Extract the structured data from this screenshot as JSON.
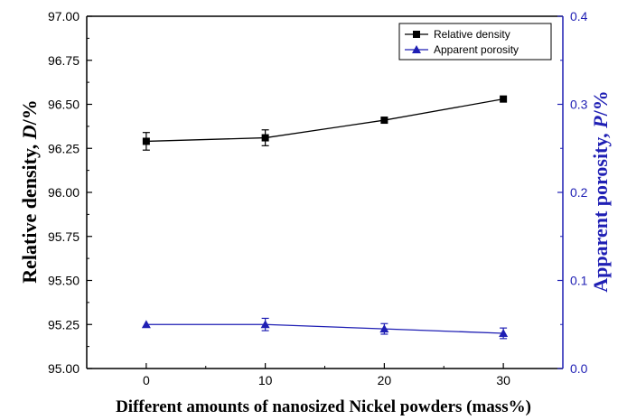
{
  "chart_data": {
    "type": "line",
    "x": [
      0,
      10,
      20,
      30
    ],
    "xlabel": "Different amounts of nanosized Nickel powders (mass%)",
    "xlim": [
      -5,
      35
    ],
    "xticks": [
      "0",
      "10",
      "20",
      "30"
    ],
    "ylabel_left_main": "Relative density, ",
    "ylabel_left_symbol": "D",
    "ylabel_left_unit": "/%",
    "ylabel_right_main": "Apparent porosity, ",
    "ylabel_right_symbol": "P",
    "ylabel_right_unit": "/%",
    "ylim_left": [
      95.0,
      97.0
    ],
    "yticks_left": [
      "95.00",
      "95.25",
      "95.50",
      "95.75",
      "96.00",
      "96.25",
      "96.50",
      "96.75",
      "97.00"
    ],
    "ylim_right": [
      0.0,
      0.4
    ],
    "yticks_right": [
      "0.0",
      "0.1",
      "0.2",
      "0.3",
      "0.4"
    ],
    "legend_position": "top-right",
    "grid": false,
    "series": [
      {
        "name": "Relative density",
        "axis": "left",
        "marker": "square",
        "color": "#000000",
        "values": [
          96.29,
          96.31,
          96.41,
          96.53
        ],
        "errors": [
          0.05,
          0.045,
          0.0,
          0.0
        ]
      },
      {
        "name": "Apparent porosity",
        "axis": "right",
        "marker": "triangle",
        "color": "#1f1fb4",
        "values": [
          0.05,
          0.05,
          0.045,
          0.04
        ],
        "errors": [
          0.0,
          0.007,
          0.006,
          0.006
        ]
      }
    ]
  },
  "colors": {
    "left_axis": "#000000",
    "right_axis": "#1f1fb4"
  }
}
